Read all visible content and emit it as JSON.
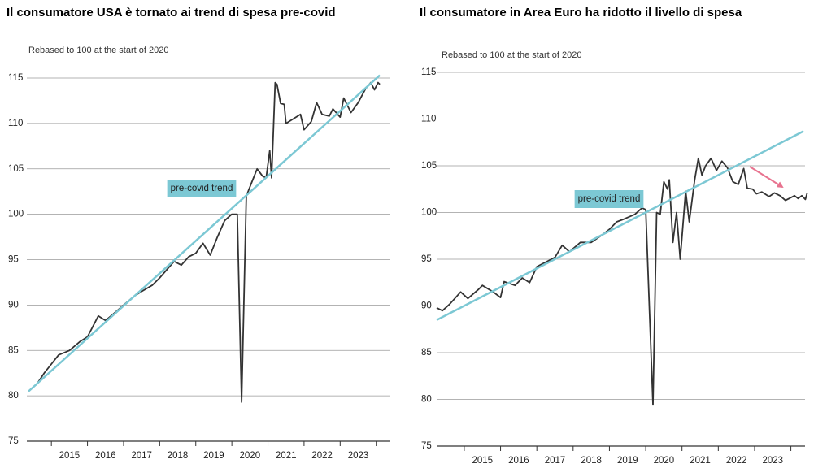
{
  "chart_data": [
    {
      "type": "line",
      "title": "Il consumatore USA è tornato ai trend di spesa pre-covid",
      "subtitle": "Rebased to 100 at the start of 2020",
      "annotation": "pre-covid trend",
      "xlim": [
        2014.32,
        2024.39
      ],
      "ylim": [
        75,
        115
      ],
      "yticks": [
        75,
        80,
        85,
        90,
        95,
        100,
        105,
        110,
        115
      ],
      "grid": true,
      "xticks": [
        {
          "value": 2015.5,
          "label": "2015"
        },
        {
          "value": 2016.5,
          "label": "2016"
        },
        {
          "value": 2017.5,
          "label": "2017"
        },
        {
          "value": 2018.5,
          "label": "2018"
        },
        {
          "value": 2019.5,
          "label": "2019"
        },
        {
          "value": 2020.5,
          "label": "2020"
        },
        {
          "value": 2021.5,
          "label": "2021"
        },
        {
          "value": 2022.5,
          "label": "2022"
        },
        {
          "value": 2023.5,
          "label": "2023"
        }
      ],
      "series": [
        {
          "color": "#333333",
          "x": [
            2014.37,
            2014.6,
            2014.8,
            2015.0,
            2015.2,
            2015.5,
            2015.8,
            2016.0,
            2016.3,
            2016.5,
            2016.8,
            2017.0,
            2017.3,
            2017.5,
            2017.8,
            2018.0,
            2018.4,
            2018.6,
            2018.8,
            2019.0,
            2019.2,
            2019.4,
            2019.6,
            2019.8,
            2020.0,
            2020.15,
            2020.27,
            2020.4,
            2020.55,
            2020.7,
            2020.85,
            2020.95,
            2021.05,
            2021.1,
            2021.2,
            2021.25,
            2021.35,
            2021.45,
            2021.5,
            2021.9,
            2022.0,
            2022.2,
            2022.35,
            2022.5,
            2022.7,
            2022.8,
            2023.0,
            2023.1,
            2023.3,
            2023.5,
            2023.7,
            2023.85,
            2023.95,
            2024.05,
            2024.1
          ],
          "values": [
            80.5,
            81.3,
            82.5,
            83.5,
            84.5,
            85,
            86,
            86.5,
            88.8,
            88.3,
            89.3,
            90,
            91,
            91.5,
            92.2,
            93,
            94.8,
            94.4,
            95.3,
            95.7,
            96.8,
            95.5,
            97.5,
            99.3,
            100,
            100,
            79.3,
            102,
            103.5,
            105,
            104.2,
            104,
            107,
            104,
            114.5,
            114.3,
            112.2,
            112.1,
            110,
            111,
            109.3,
            110.2,
            112.3,
            111,
            110.8,
            111.6,
            110.7,
            112.8,
            111.2,
            112.3,
            113.8,
            114.5,
            113.7,
            114.5,
            114.3
          ]
        },
        {
          "color": "#7cc8d4",
          "x": [
            2014.37,
            2024.1
          ],
          "values": [
            80.5,
            115.3
          ]
        }
      ]
    },
    {
      "type": "line",
      "title": "Il consumatore in Area Euro ha ridotto il livello di spesa",
      "subtitle": "Rebased to 100 at the start of 2020",
      "annotation": "pre-covid trend",
      "xlim": [
        2014.24,
        2024.39
      ],
      "ylim": [
        75,
        115
      ],
      "yticks": [
        75,
        80,
        85,
        90,
        95,
        100,
        105,
        110,
        115
      ],
      "grid": true,
      "xticks": [
        {
          "value": 2015.5,
          "label": "2015"
        },
        {
          "value": 2016.5,
          "label": "2016"
        },
        {
          "value": 2017.5,
          "label": "2017"
        },
        {
          "value": 2018.5,
          "label": "2018"
        },
        {
          "value": 2019.5,
          "label": "2019"
        },
        {
          "value": 2020.5,
          "label": "2020"
        },
        {
          "value": 2021.5,
          "label": "2021"
        },
        {
          "value": 2022.5,
          "label": "2022"
        },
        {
          "value": 2023.5,
          "label": "2023"
        }
      ],
      "series": [
        {
          "color": "#333333",
          "x": [
            2014.24,
            2014.4,
            2014.6,
            2014.9,
            2015.1,
            2015.4,
            2015.5,
            2015.8,
            2016.0,
            2016.1,
            2016.4,
            2016.6,
            2016.8,
            2017.0,
            2017.3,
            2017.5,
            2017.7,
            2017.9,
            2018.2,
            2018.5,
            2018.8,
            2019.0,
            2019.2,
            2019.4,
            2019.7,
            2019.9,
            2020.0,
            2020.2,
            2020.3,
            2020.4,
            2020.5,
            2020.6,
            2020.65,
            2020.75,
            2020.85,
            2020.95,
            2021.1,
            2021.2,
            2021.35,
            2021.45,
            2021.55,
            2021.65,
            2021.8,
            2021.95,
            2022.1,
            2022.25,
            2022.4,
            2022.55,
            2022.7,
            2022.8,
            2022.95,
            2023.05,
            2023.2,
            2023.4,
            2023.55,
            2023.7,
            2023.85,
            2023.95,
            2024.1,
            2024.2,
            2024.3,
            2024.4,
            2024.45
          ],
          "values": [
            89.8,
            89.5,
            90.2,
            91.5,
            90.8,
            91.8,
            92.2,
            91.5,
            90.9,
            92.6,
            92.2,
            93,
            92.5,
            94.2,
            94.8,
            95.2,
            96.5,
            95.8,
            96.8,
            96.8,
            97.6,
            98.2,
            99,
            99.3,
            99.8,
            100.5,
            100.3,
            79.4,
            100,
            99.8,
            103.3,
            102.5,
            103.5,
            96.8,
            100,
            95,
            102.3,
            99,
            103.5,
            105.8,
            104,
            105,
            105.8,
            104.5,
            105.5,
            104.8,
            103.3,
            103,
            104.7,
            102.6,
            102.5,
            102,
            102.2,
            101.7,
            102.1,
            101.8,
            101.3,
            101.5,
            101.8,
            101.5,
            101.8,
            101.4,
            102.1
          ]
        },
        {
          "color": "#7cc8d4",
          "x": [
            2014.24,
            2024.35
          ],
          "values": [
            88.5,
            108.7
          ]
        }
      ]
    }
  ]
}
